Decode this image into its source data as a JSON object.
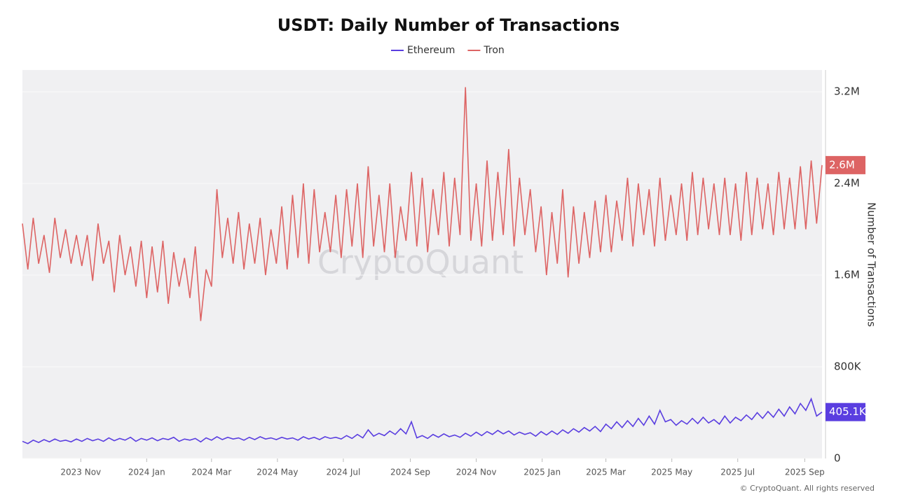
{
  "chart_data": {
    "type": "line",
    "title": "USDT: Daily Number of Transactions",
    "y_label": "Number of Transactions",
    "watermark": "CryptoQuant",
    "footer": "© CryptoQuant. All rights reserved",
    "xlim": [
      0,
      740
    ],
    "xticks": [
      {
        "value": 54,
        "label": "2023 Nov"
      },
      {
        "value": 115,
        "label": "2024 Jan"
      },
      {
        "value": 175,
        "label": "2024 Mar"
      },
      {
        "value": 236,
        "label": "2024 May"
      },
      {
        "value": 297,
        "label": "2024 Jul"
      },
      {
        "value": 359,
        "label": "2024 Sep"
      },
      {
        "value": 420,
        "label": "2024 Nov"
      },
      {
        "value": 481,
        "label": "2025 Jan"
      },
      {
        "value": 540,
        "label": "2025 Mar"
      },
      {
        "value": 601,
        "label": "2025 May"
      },
      {
        "value": 662,
        "label": "2025 Jul"
      },
      {
        "value": 724,
        "label": "2025 Sep"
      }
    ],
    "ylim": [
      0,
      3390000
    ],
    "yticks": [
      0,
      {
        "value": 800000,
        "label": "800K"
      },
      {
        "value": 1600000,
        "label": "1.6M"
      },
      {
        "value": 2400000,
        "label": "2.4M"
      },
      {
        "value": 3200000,
        "label": "3.2M"
      }
    ],
    "grid": true,
    "x": [
      0,
      5,
      10,
      15,
      20,
      25,
      30,
      35,
      40,
      45,
      50,
      55,
      60,
      65,
      70,
      75,
      80,
      85,
      90,
      95,
      100,
      105,
      110,
      115,
      120,
      125,
      130,
      135,
      140,
      145,
      150,
      155,
      160,
      165,
      170,
      175,
      180,
      185,
      190,
      195,
      200,
      205,
      210,
      215,
      220,
      225,
      230,
      235,
      240,
      245,
      250,
      255,
      260,
      265,
      270,
      275,
      280,
      285,
      290,
      295,
      300,
      305,
      310,
      315,
      320,
      325,
      330,
      335,
      340,
      345,
      350,
      355,
      360,
      365,
      370,
      375,
      380,
      385,
      390,
      395,
      400,
      405,
      410,
      415,
      420,
      425,
      430,
      435,
      440,
      445,
      450,
      455,
      460,
      465,
      470,
      475,
      480,
      485,
      490,
      495,
      500,
      505,
      510,
      515,
      520,
      525,
      530,
      535,
      540,
      545,
      550,
      555,
      560,
      565,
      570,
      575,
      580,
      585,
      590,
      595,
      600,
      605,
      610,
      615,
      620,
      625,
      630,
      635,
      640,
      645,
      650,
      655,
      660,
      665,
      670,
      675,
      680,
      685,
      690,
      695,
      700,
      705,
      710,
      715,
      720,
      725,
      730,
      735,
      740
    ],
    "series": [
      {
        "name": "Ethereum",
        "color": "#5a3ee0",
        "values": [
          150000,
          130000,
          160000,
          140000,
          165000,
          145000,
          170000,
          150000,
          160000,
          145000,
          170000,
          150000,
          175000,
          155000,
          170000,
          150000,
          180000,
          155000,
          175000,
          160000,
          185000,
          150000,
          175000,
          160000,
          180000,
          155000,
          175000,
          165000,
          185000,
          150000,
          170000,
          160000,
          175000,
          145000,
          180000,
          160000,
          190000,
          165000,
          185000,
          170000,
          180000,
          160000,
          185000,
          165000,
          190000,
          170000,
          180000,
          165000,
          185000,
          170000,
          180000,
          160000,
          190000,
          170000,
          185000,
          165000,
          190000,
          175000,
          185000,
          170000,
          200000,
          175000,
          210000,
          180000,
          250000,
          195000,
          220000,
          200000,
          240000,
          210000,
          260000,
          215000,
          320000,
          180000,
          200000,
          175000,
          210000,
          185000,
          215000,
          190000,
          205000,
          185000,
          220000,
          195000,
          230000,
          200000,
          235000,
          210000,
          245000,
          215000,
          240000,
          205000,
          230000,
          210000,
          225000,
          195000,
          235000,
          205000,
          240000,
          210000,
          250000,
          220000,
          260000,
          230000,
          270000,
          240000,
          280000,
          235000,
          300000,
          260000,
          320000,
          270000,
          330000,
          280000,
          350000,
          290000,
          370000,
          300000,
          420000,
          320000,
          340000,
          290000,
          330000,
          300000,
          350000,
          305000,
          360000,
          310000,
          340000,
          300000,
          370000,
          310000,
          360000,
          330000,
          380000,
          340000,
          400000,
          350000,
          410000,
          360000,
          430000,
          370000,
          450000,
          390000,
          480000,
          420000,
          520000,
          370000,
          405100
        ],
        "value_labels": [
          null,
          null,
          null,
          null,
          null,
          null,
          null,
          null,
          null,
          null,
          null,
          null,
          null,
          null,
          null,
          null,
          null,
          null,
          null,
          null,
          null,
          null,
          null,
          null,
          null,
          null,
          null,
          null,
          null,
          null,
          null,
          null,
          null,
          null,
          null,
          null,
          null,
          null,
          null,
          null,
          null,
          null,
          null,
          null,
          null,
          null,
          null,
          null,
          null,
          null,
          null,
          null,
          null,
          null,
          null,
          null,
          null,
          null,
          null,
          null,
          null,
          null,
          null,
          null,
          null,
          null,
          null,
          null,
          null,
          null,
          null,
          null,
          null,
          null,
          null,
          null,
          null,
          null,
          null,
          null,
          null,
          null,
          null,
          null,
          null,
          null,
          null,
          null,
          null,
          null,
          null,
          null,
          null,
          null,
          null,
          null,
          null,
          null,
          null,
          null,
          null,
          null,
          null,
          null,
          null,
          null,
          null,
          null,
          null,
          null,
          null,
          null,
          null,
          null,
          null,
          null,
          null,
          null,
          null,
          null,
          null,
          null,
          null,
          null,
          null,
          null,
          null,
          null,
          null,
          null,
          null,
          null,
          null,
          null,
          null,
          null,
          null,
          null,
          null,
          null,
          null,
          null,
          null,
          null,
          null,
          null,
          null,
          null,
          "405.1K"
        ]
      },
      {
        "name": "Tron",
        "color": "#dd6464",
        "values": [
          2050000,
          1650000,
          2100000,
          1700000,
          1950000,
          1620000,
          2100000,
          1750000,
          2000000,
          1700000,
          1950000,
          1680000,
          1950000,
          1550000,
          2050000,
          1700000,
          1900000,
          1450000,
          1950000,
          1600000,
          1850000,
          1500000,
          1900000,
          1400000,
          1850000,
          1450000,
          1900000,
          1350000,
          1800000,
          1500000,
          1750000,
          1400000,
          1850000,
          1200000,
          1650000,
          1500000,
          2350000,
          1750000,
          2100000,
          1700000,
          2150000,
          1650000,
          2050000,
          1700000,
          2100000,
          1600000,
          2000000,
          1700000,
          2200000,
          1650000,
          2300000,
          1750000,
          2400000,
          1700000,
          2350000,
          1800000,
          2150000,
          1800000,
          2300000,
          1750000,
          2350000,
          1850000,
          2400000,
          1750000,
          2550000,
          1850000,
          2300000,
          1800000,
          2400000,
          1750000,
          2200000,
          1900000,
          2500000,
          1850000,
          2450000,
          1800000,
          2350000,
          1950000,
          2500000,
          1850000,
          2450000,
          1950000,
          3240000,
          1900000,
          2400000,
          1850000,
          2600000,
          1900000,
          2500000,
          1950000,
          2700000,
          1850000,
          2450000,
          1950000,
          2350000,
          1800000,
          2200000,
          1600000,
          2150000,
          1700000,
          2350000,
          1580000,
          2200000,
          1700000,
          2150000,
          1750000,
          2250000,
          1800000,
          2300000,
          1800000,
          2250000,
          1900000,
          2450000,
          1850000,
          2400000,
          1950000,
          2350000,
          1850000,
          2450000,
          1900000,
          2300000,
          1950000,
          2400000,
          1900000,
          2500000,
          1950000,
          2450000,
          2000000,
          2400000,
          1950000,
          2450000,
          1950000,
          2400000,
          1900000,
          2500000,
          1950000,
          2450000,
          2000000,
          2400000,
          1950000,
          2500000,
          2000000,
          2450000,
          2000000,
          2550000,
          2000000,
          2600000,
          2050000,
          2560000
        ],
        "value_labels": [
          null,
          null,
          null,
          null,
          null,
          null,
          null,
          null,
          null,
          null,
          null,
          null,
          null,
          null,
          null,
          null,
          null,
          null,
          null,
          null,
          null,
          null,
          null,
          null,
          null,
          null,
          null,
          null,
          null,
          null,
          null,
          null,
          null,
          null,
          null,
          null,
          null,
          null,
          null,
          null,
          null,
          null,
          null,
          null,
          null,
          null,
          null,
          null,
          null,
          null,
          null,
          null,
          null,
          null,
          null,
          null,
          null,
          null,
          null,
          null,
          null,
          null,
          null,
          null,
          null,
          null,
          null,
          null,
          null,
          null,
          null,
          null,
          null,
          null,
          null,
          null,
          null,
          null,
          null,
          null,
          null,
          null,
          null,
          null,
          null,
          null,
          null,
          null,
          null,
          null,
          null,
          null,
          null,
          null,
          null,
          null,
          null,
          null,
          null,
          null,
          null,
          null,
          null,
          null,
          null,
          null,
          null,
          null,
          null,
          null,
          null,
          null,
          null,
          null,
          null,
          null,
          null,
          null,
          null,
          null,
          null,
          null,
          null,
          null,
          null,
          null,
          null,
          null,
          null,
          null,
          null,
          null,
          null,
          null,
          null,
          null,
          null,
          null,
          null,
          null,
          null,
          null,
          null,
          null,
          null,
          null,
          null,
          null,
          "2.6M"
        ]
      }
    ]
  }
}
